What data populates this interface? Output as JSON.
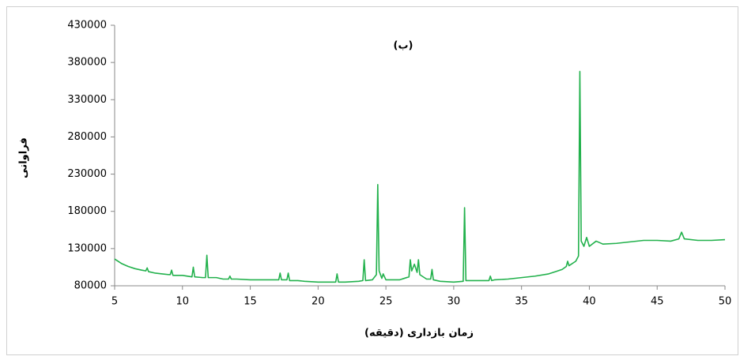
{
  "chart_data": {
    "type": "line",
    "title": "(ب)",
    "x_label": "زمان بازداری (دقیقه)",
    "y_label": "فراوانی",
    "x": [
      5,
      5.5,
      6,
      6.5,
      7,
      7.3,
      7.4,
      7.5,
      8,
      8.5,
      9,
      9.1,
      9.2,
      9.3,
      10,
      10.7,
      10.8,
      10.9,
      11.5,
      11.7,
      11.8,
      11.9,
      12.5,
      13,
      13.4,
      13.5,
      13.6,
      14,
      15,
      16,
      16.5,
      17.1,
      17.2,
      17.3,
      17.7,
      17.8,
      17.9,
      18.5,
      19,
      20,
      21,
      21.3,
      21.4,
      21.5,
      22,
      23,
      23.3,
      23.4,
      23.5,
      24,
      24.3,
      24.4,
      24.5,
      24.7,
      24.8,
      25,
      26,
      26.7,
      26.8,
      26.9,
      27.1,
      27.3,
      27.4,
      27.5,
      28,
      28.3,
      28.4,
      28.5,
      29,
      30,
      30.7,
      30.8,
      30.9,
      31.5,
      32,
      32.6,
      32.7,
      32.8,
      33,
      34,
      35,
      36,
      37,
      37.5,
      38,
      38.3,
      38.4,
      38.5,
      39,
      39.2,
      39.3,
      39.4,
      39.6,
      39.8,
      40,
      40.5,
      41,
      42,
      43,
      44,
      45,
      46,
      46.6,
      46.8,
      47,
      48,
      49,
      50
    ],
    "series": [
      {
        "name": "فراوانی",
        "color": "#22b14c",
        "values": [
          116000,
          110000,
          106000,
          103000,
          101000,
          100000,
          104000,
          99000,
          97000,
          96000,
          95000,
          95000,
          101000,
          94000,
          94000,
          92000,
          105000,
          92000,
          91000,
          91000,
          121000,
          91000,
          91000,
          89000,
          89000,
          93000,
          89000,
          89000,
          88000,
          88000,
          88000,
          88000,
          97000,
          88000,
          88000,
          97000,
          87000,
          87000,
          86000,
          85000,
          85000,
          85000,
          96000,
          85000,
          85000,
          86000,
          87000,
          115000,
          87000,
          88000,
          95000,
          216000,
          100000,
          90000,
          96000,
          88000,
          88000,
          92000,
          115000,
          100000,
          109000,
          98000,
          115000,
          95000,
          89000,
          89000,
          102000,
          88000,
          86000,
          85000,
          86000,
          185000,
          87000,
          87000,
          87000,
          87000,
          93000,
          87000,
          88000,
          89000,
          91000,
          93000,
          96000,
          99000,
          102000,
          106000,
          113000,
          107000,
          113000,
          120000,
          368000,
          140000,
          133000,
          145000,
          133000,
          140000,
          136000,
          137000,
          139000,
          141000,
          141000,
          140000,
          143000,
          152000,
          143000,
          141000,
          141000,
          142000
        ]
      }
    ],
    "xlim": [
      5,
      50
    ],
    "xticks": [
      5,
      10,
      15,
      20,
      25,
      30,
      35,
      40,
      45,
      50
    ],
    "ylim": [
      80000,
      430000
    ],
    "yticks": [
      80000,
      130000,
      180000,
      230000,
      280000,
      330000,
      380000,
      430000
    ],
    "grid": false
  }
}
